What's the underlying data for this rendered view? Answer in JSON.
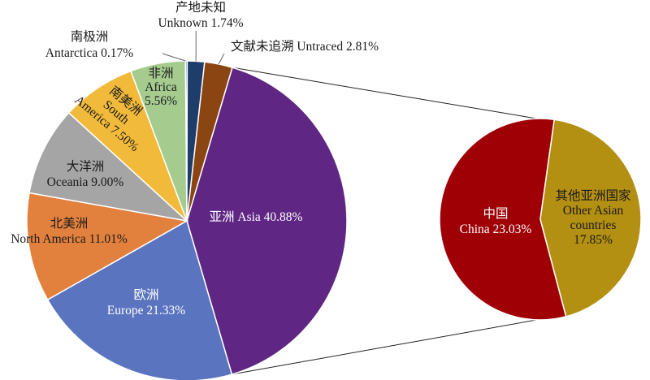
{
  "chart_data": [
    {
      "type": "pie",
      "name": "main",
      "slices": [
        {
          "key": "asia",
          "label_zh": "亚洲",
          "label_en": "Asia",
          "value": 40.88,
          "display": "亚洲 Asia 40.88%",
          "color": "#5F2684",
          "text_color": "#ffffff"
        },
        {
          "key": "europe",
          "label_zh": "欧洲",
          "label_en": "Europe",
          "value": 21.33,
          "display_lines": [
            "欧洲",
            "Europe 21.33%"
          ],
          "color": "#5A74BF",
          "text_color": "#ffffff"
        },
        {
          "key": "north_america",
          "label_zh": "北美洲",
          "label_en": "North America",
          "value": 11.01,
          "display_lines": [
            "北美洲",
            "North America 11.01%"
          ],
          "color": "#E2813E",
          "text_color": "#1a1a1a"
        },
        {
          "key": "oceania",
          "label_zh": "大洋洲",
          "label_en": "Oceania",
          "value": 9.0,
          "display_lines": [
            "大洋洲",
            "Oceania 9.00%"
          ],
          "color": "#A5A5A5",
          "text_color": "#1a1a1a"
        },
        {
          "key": "south_america",
          "label_zh": "南美洲",
          "label_en": "South America",
          "value": 7.5,
          "display_lines": [
            "南美洲",
            "South",
            "America 7.50%"
          ],
          "color": "#F2BA3B",
          "text_color": "#1a1a1a"
        },
        {
          "key": "africa",
          "label_zh": "非洲",
          "label_en": "Africa",
          "value": 5.56,
          "display_lines": [
            "非洲",
            "Africa",
            "5.56%"
          ],
          "color": "#A5CB8F",
          "text_color": "#1a1a1a"
        },
        {
          "key": "antarctica",
          "label_zh": "南极洲",
          "label_en": "Antarctica",
          "value": 0.17,
          "display_lines": [
            "南极洲",
            "Antarctica 0.17%"
          ],
          "color": "#3B7CC4",
          "text_color": "#1a1a1a"
        },
        {
          "key": "unknown",
          "label_zh": "产地未知",
          "label_en": "Unknown",
          "value": 1.74,
          "display_lines": [
            "产地未知",
            "Unknown 1.74%"
          ],
          "color": "#1F3D6B",
          "text_color": "#1a1a1a"
        },
        {
          "key": "untraced",
          "label_zh": "文献未追溯",
          "label_en": "Untraced",
          "value": 2.81,
          "display": "文献未追溯 Untraced 2.81%",
          "color": "#8B4513",
          "text_color": "#1a1a1a"
        }
      ]
    },
    {
      "type": "pie",
      "name": "asia_breakdown",
      "slices": [
        {
          "key": "china",
          "label_zh": "中国",
          "label_en": "China",
          "value": 23.03,
          "display_lines": [
            "中国",
            "China 23.03%"
          ],
          "color": "#9E0006",
          "text_color": "#ffffff"
        },
        {
          "key": "other_asia",
          "label_zh": "其他亚洲国家",
          "label_en": "Other Asian countries",
          "value": 17.85,
          "display_lines": [
            "其他亚洲国家",
            "Other Asian",
            "countries",
            "17.85%"
          ],
          "color": "#B38F12",
          "text_color": "#1a1a1a"
        }
      ]
    }
  ]
}
